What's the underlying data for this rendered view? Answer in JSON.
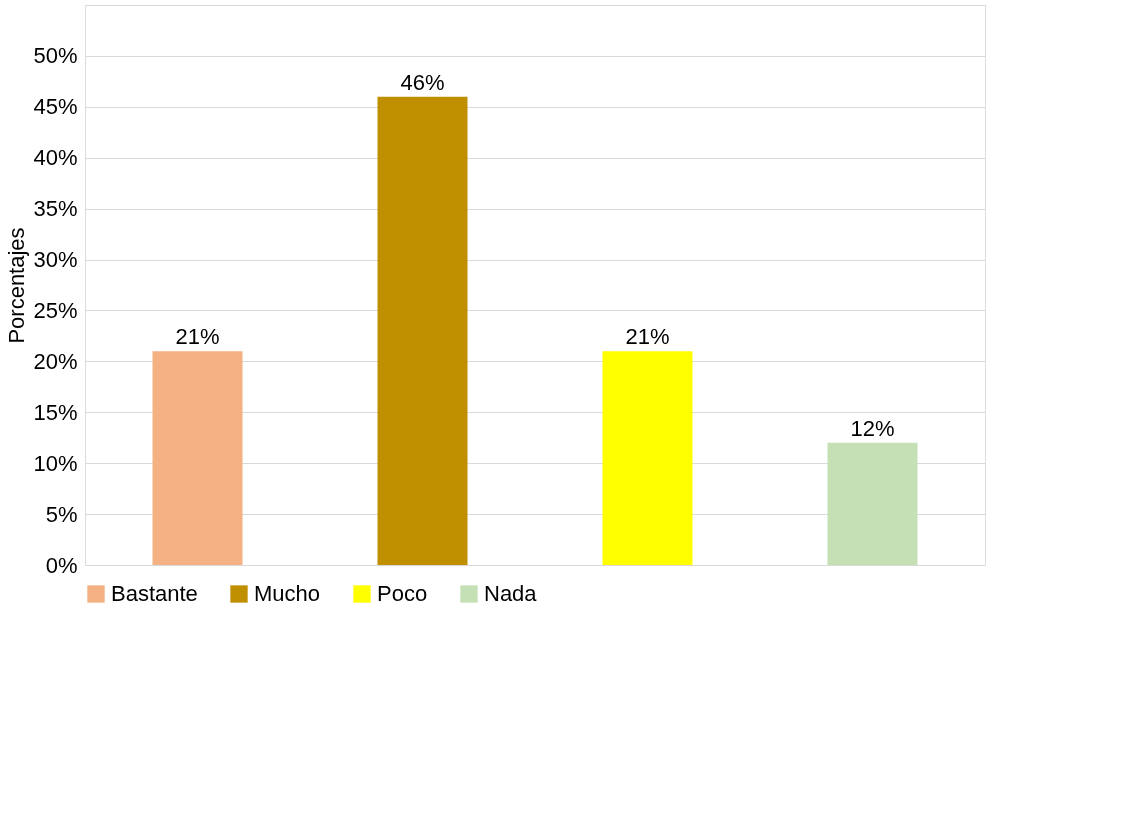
{
  "chart_data": {
    "type": "bar",
    "ylabel": "Porcentajes",
    "categories": [
      null,
      null,
      null,
      null
    ],
    "series": [
      {
        "name": "Bastante",
        "color": "#f4b183",
        "values": [
          21,
          null,
          null,
          null
        ],
        "value_labels": [
          "21%",
          null,
          null,
          null
        ]
      },
      {
        "name": "Mucho",
        "color": "#bf8f00",
        "values": [
          null,
          46,
          null,
          null
        ],
        "value_labels": [
          null,
          "46%",
          null,
          null
        ]
      },
      {
        "name": "Poco",
        "color": "#ffff00",
        "values": [
          null,
          null,
          21,
          null
        ],
        "value_labels": [
          null,
          null,
          "21%",
          null
        ]
      },
      {
        "name": "Nada",
        "color": "#c5e0b4",
        "values": [
          null,
          null,
          null,
          12
        ],
        "value_labels": [
          null,
          null,
          null,
          "12%"
        ]
      }
    ],
    "ylim": [
      0,
      55
    ],
    "yticks": [
      {
        "value": 0,
        "label": "0%"
      },
      {
        "value": 5,
        "label": "5%"
      },
      {
        "value": 10,
        "label": "10%"
      },
      {
        "value": 15,
        "label": "15%"
      },
      {
        "value": 20,
        "label": "20%"
      },
      {
        "value": 25,
        "label": "25%"
      },
      {
        "value": 30,
        "label": "30%"
      },
      {
        "value": 35,
        "label": "35%"
      },
      {
        "value": 40,
        "label": "40%"
      },
      {
        "value": 45,
        "label": "45%"
      },
      {
        "value": 50,
        "label": "50%"
      },
      {
        "value": 55,
        "label": null
      }
    ],
    "grid": "y",
    "legend": "bottom",
    "tick_labels": "y"
  }
}
